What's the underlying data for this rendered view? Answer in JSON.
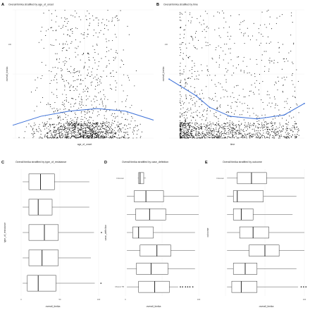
{
  "colors": {
    "points": "#111111",
    "fit_line": "#3a6fd8",
    "box_fill": "#ffffff",
    "box_stroke": "#333333",
    "grid": "#ececec"
  },
  "chart_data": [
    {
      "panel": "A",
      "type": "scatter",
      "title": "Overall timika stratified by age_of_onset",
      "xlabel": "age_of_onset",
      "ylabel": "overall_timika",
      "grid": true,
      "legend": "none",
      "n_points": 1500,
      "x_range": [
        0,
        100
      ],
      "y_range": [
        0,
        100
      ],
      "x_ticks": [
        "",
        "",
        "",
        ""
      ],
      "y_ticks": [
        "",
        "100"
      ],
      "smooth": {
        "x": [
          0,
          20,
          40,
          60,
          80,
          100
        ],
        "y": [
          10,
          17,
          21,
          23,
          21,
          14
        ]
      }
    },
    {
      "panel": "B",
      "type": "scatter",
      "title": "Overall timika stratified by time",
      "xlabel": "time",
      "ylabel": "overall_timika",
      "grid": true,
      "legend": "none",
      "n_points": 1500,
      "x_range": [
        0,
        100
      ],
      "y_range": [
        0,
        100
      ],
      "x_ticks": [
        "",
        "",
        "",
        ""
      ],
      "y_ticks": [
        "",
        "100"
      ],
      "smooth": {
        "x": [
          0,
          20,
          30,
          45,
          65,
          85,
          100
        ],
        "y": [
          46,
          33,
          24,
          17,
          15,
          18,
          27
        ]
      }
    },
    {
      "panel": "C",
      "type": "box",
      "title": "Overall timika stratified by type_of_resistance",
      "xlabel": "overall_timika",
      "ylabel": "type_of_resistance",
      "x_range": [
        0,
        100
      ],
      "x_ticks": [
        "0",
        "50",
        "100"
      ],
      "categories": [
        "",
        "",
        "",
        "",
        ""
      ],
      "boxes": [
        {
          "min": 2,
          "q1": 10,
          "median": 25,
          "q3": 43,
          "max": 88,
          "outliers": []
        },
        {
          "min": 2,
          "q1": 10,
          "median": 22,
          "q3": 40,
          "max": 88,
          "outliers": []
        },
        {
          "min": 2,
          "q1": 10,
          "median": 30,
          "q3": 48,
          "max": 94,
          "outliers": [
            104
          ]
        },
        {
          "min": 2,
          "q1": 10,
          "median": 27,
          "q3": 48,
          "max": 90,
          "outliers": []
        },
        {
          "min": 2,
          "q1": 8,
          "median": 22,
          "q3": 45,
          "max": 95,
          "outliers": [
            103
          ]
        }
      ]
    },
    {
      "panel": "D",
      "type": "box",
      "title": "Overall timika stratified by case_definition",
      "xlabel": "overall_timika",
      "ylabel": "case_definition",
      "x_range": [
        0,
        100
      ],
      "x_ticks": [
        "0",
        "",
        "100"
      ],
      "categories": [
        "Unknown",
        "",
        "",
        "",
        "",
        "",
        "Chronic TB"
      ],
      "boxes": [
        {
          "min": 17,
          "q1": 18,
          "median": 20,
          "q3": 25,
          "max": 28,
          "outliers": []
        },
        {
          "min": 2,
          "q1": 12,
          "median": 28,
          "q3": 52,
          "max": 100,
          "outliers": []
        },
        {
          "min": 2,
          "q1": 14,
          "median": 33,
          "q3": 55,
          "max": 100,
          "outliers": []
        },
        {
          "min": 2,
          "q1": 10,
          "median": 18,
          "q3": 38,
          "max": 95,
          "outliers": []
        },
        {
          "min": 2,
          "q1": 20,
          "median": 43,
          "q3": 62,
          "max": 95,
          "outliers": []
        },
        {
          "min": 2,
          "q1": 15,
          "median": 35,
          "q3": 58,
          "max": 95,
          "outliers": []
        },
        {
          "min": 2,
          "q1": 18,
          "median": 40,
          "q3": 60,
          "max": 72,
          "outliers": [
            75,
            78,
            82,
            85,
            88,
            92
          ]
        }
      ]
    },
    {
      "panel": "E",
      "type": "box",
      "title": "Overall timika stratified by outcome",
      "xlabel": "overall_timika",
      "ylabel": "outcome",
      "x_range": [
        0,
        100
      ],
      "x_ticks": [
        "",
        "",
        "100"
      ],
      "categories": [
        "Unknown",
        "",
        "",
        "",
        "",
        "",
        ""
      ],
      "boxes": [
        {
          "min": 2,
          "q1": 15,
          "median": 33,
          "q3": 52,
          "max": 100,
          "outliers": []
        },
        {
          "min": 2,
          "q1": 10,
          "median": 15,
          "q3": 48,
          "max": 90,
          "outliers": []
        },
        {
          "min": 2,
          "q1": 10,
          "median": 20,
          "q3": 35,
          "max": 85,
          "outliers": []
        },
        {
          "min": 2,
          "q1": 18,
          "median": 35,
          "q3": 55,
          "max": 100,
          "outliers": []
        },
        {
          "min": 2,
          "q1": 30,
          "median": 50,
          "q3": 68,
          "max": 100,
          "outliers": []
        },
        {
          "min": 2,
          "q1": 10,
          "median": 25,
          "q3": 40,
          "max": 90,
          "outliers": []
        },
        {
          "min": 2,
          "q1": 8,
          "median": 20,
          "q3": 40,
          "max": 92,
          "outliers": [
            96,
            99,
            102
          ]
        }
      ]
    }
  ]
}
